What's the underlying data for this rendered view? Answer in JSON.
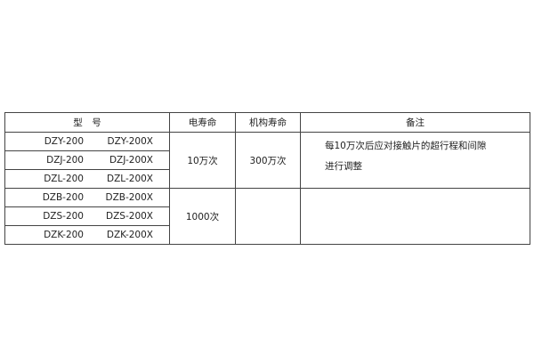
{
  "headers": [
    "型　号",
    "电寿命",
    "机构寿命",
    "备注"
  ],
  "rows": [
    {
      "model_a": "DZY-200",
      "model_b": "DZY-200X"
    },
    {
      "model_a": "DZJ-200",
      "model_b": "DZJ-200X"
    },
    {
      "model_a": "DZL-200",
      "model_b": "DZL-200X"
    },
    {
      "model_a": "DZB-200",
      "model_b": "DZB-200X"
    },
    {
      "model_a": "DZS-200",
      "model_b": "DZS-200X"
    },
    {
      "model_a": "DZK-200",
      "model_b": "DZK-200X"
    }
  ],
  "groups": [
    {
      "electrical_life": "10万次",
      "mechanical_life": "300万次",
      "remark_lines": [
        "每10万次后应对接触片的超行程和间隙",
        "进行调整"
      ]
    },
    {
      "electrical_life": "1000次",
      "mechanical_life": "",
      "remark_lines": []
    }
  ]
}
